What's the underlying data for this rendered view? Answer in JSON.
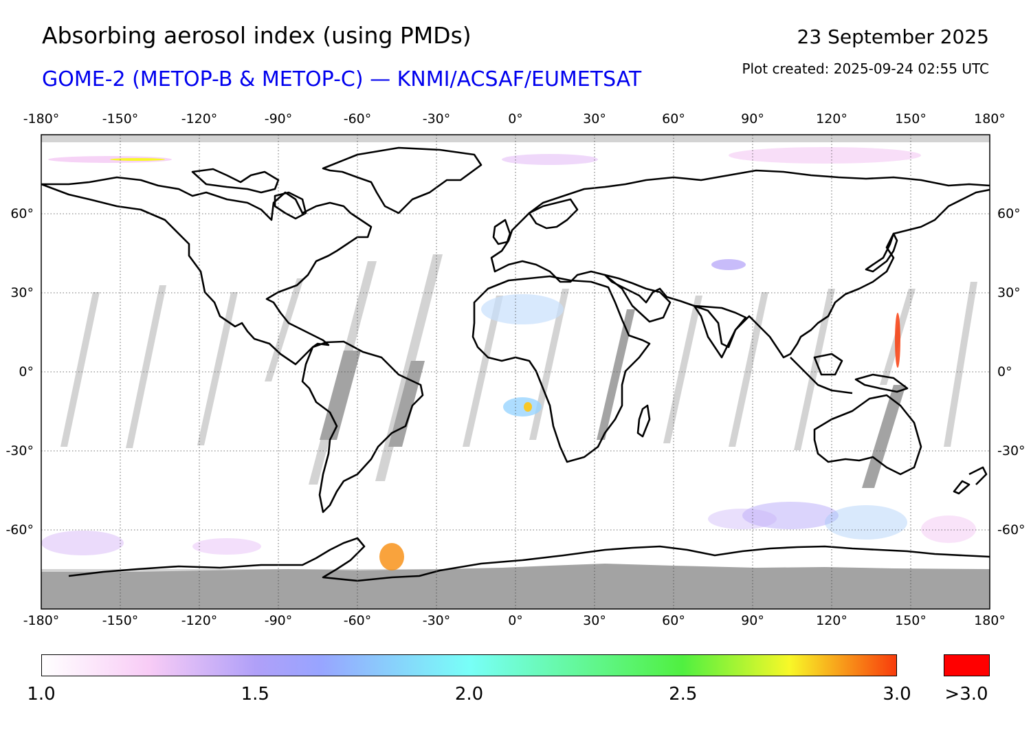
{
  "header": {
    "title": "Absorbing aerosol index (using PMDs)",
    "subtitle": "GOME-2 (METOP-B & METOP-C) — KNMI/ACSAF/EUMETSAT",
    "date": "23 September 2025",
    "created": "Plot created: 2025-09-24 02:55 UTC"
  },
  "colors": {
    "subtitle": "#0000ee",
    "overflow": "#ff0000",
    "no_data_light": "#d3d3d3",
    "no_data_dark": "#a3a3a3",
    "coastline": "#000000",
    "gridline": "#404040"
  },
  "map": {
    "projection": "equirectangular",
    "lon_range": [
      -180,
      180
    ],
    "lat_range": [
      -90,
      90
    ],
    "lon_ticks": [
      {
        "value": -180,
        "label": "-180°"
      },
      {
        "value": -150,
        "label": "-150°"
      },
      {
        "value": -120,
        "label": "-120°"
      },
      {
        "value": -90,
        "label": "-90°"
      },
      {
        "value": -60,
        "label": "-60°"
      },
      {
        "value": -30,
        "label": "-30°"
      },
      {
        "value": 0,
        "label": "0°"
      },
      {
        "value": 30,
        "label": "30°"
      },
      {
        "value": 60,
        "label": "60°"
      },
      {
        "value": 90,
        "label": "90°"
      },
      {
        "value": 120,
        "label": "120°"
      },
      {
        "value": 150,
        "label": "150°"
      },
      {
        "value": 180,
        "label": "180°"
      }
    ],
    "lat_ticks": [
      {
        "value": 60,
        "label": "60°"
      },
      {
        "value": 30,
        "label": "30°"
      },
      {
        "value": 0,
        "label": "0°"
      },
      {
        "value": -30,
        "label": "-30°"
      },
      {
        "value": -60,
        "label": "-60°"
      }
    ],
    "grid": "dotted"
  },
  "colorbar": {
    "range": [
      1.0,
      3.0
    ],
    "ticks": [
      {
        "value": 1.0,
        "label": "1.0"
      },
      {
        "value": 1.5,
        "label": "1.5"
      },
      {
        "value": 2.0,
        "label": "2.0"
      },
      {
        "value": 2.5,
        "label": "2.5"
      },
      {
        "value": 3.0,
        "label": "3.0"
      }
    ],
    "overflow_label": ">3.0",
    "stops": [
      {
        "value": 1.0,
        "color": "#ffffff"
      },
      {
        "value": 1.25,
        "color": "#f8ccf6"
      },
      {
        "value": 1.5,
        "color": "#b0a0f8"
      },
      {
        "value": 1.65,
        "color": "#98a4ff"
      },
      {
        "value": 2.0,
        "color": "#78fff8"
      },
      {
        "value": 2.5,
        "color": "#50f040"
      },
      {
        "value": 2.75,
        "color": "#f8f828"
      },
      {
        "value": 3.0,
        "color": "#f83c0c"
      }
    ]
  }
}
